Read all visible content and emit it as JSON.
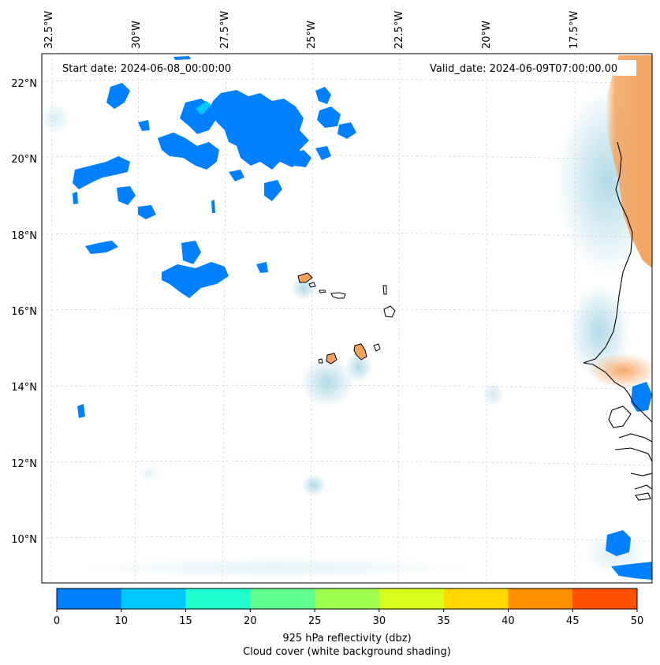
{
  "header": {
    "start_date": "Start date: 2024-06-08_00:00:00",
    "valid_date": "Valid_date: 2024-06-09T07:00:00.00"
  },
  "map": {
    "lon_ticks": [
      "32.5°W",
      "30°W",
      "27.5°W",
      "25°W",
      "22.5°W",
      "20°W",
      "17.5°W"
    ],
    "lat_ticks": [
      "22°N",
      "20°N",
      "18°N",
      "16°N",
      "14°N",
      "12°N",
      "10°N"
    ],
    "colors": {
      "land_fill": "#f4a460",
      "coast": "#000000",
      "cloud": "#add8e6",
      "warm": "#f4a460"
    }
  },
  "colorbar": {
    "ticks": [
      "0",
      "10",
      "15",
      "20",
      "25",
      "30",
      "35",
      "40",
      "45",
      "50"
    ],
    "colors": [
      "#0080ff",
      "#00c8ff",
      "#20ffd0",
      "#60ff90",
      "#a0ff50",
      "#d8ff20",
      "#ffd800",
      "#ff9000",
      "#ff5000"
    ],
    "label_line1": "925 hPa reflectivity (dbz)",
    "label_line2": "Cloud cover (white background shading)"
  }
}
